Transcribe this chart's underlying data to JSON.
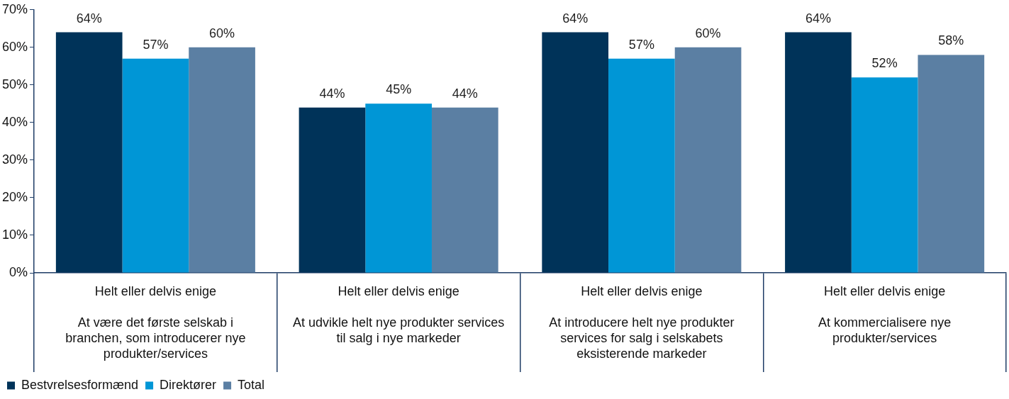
{
  "chart_data": {
    "type": "bar",
    "categories": [
      "Helt eller delvis enige\nAt være det første selskab i branchen, som introducerer nye produkter/services",
      "Helt eller delvis enige\nAt udvikle helt nye produkter services til salg i nye markeder",
      "Helt eller delvis enige\nAt introducere helt nye produkter services for salg i selskabets eksisterende markeder",
      "Helt eller delvis enige\nAt kommercialisere nye produkter/services"
    ],
    "series": [
      {
        "name": "Bestvrelsesformænd",
        "color": "#003359",
        "values": [
          64,
          44,
          64,
          64
        ],
        "value_labels": [
          "64%",
          "44%",
          "64%",
          "64%"
        ]
      },
      {
        "name": "Direktører",
        "color": "#0096d6",
        "values": [
          57,
          45,
          57,
          52
        ],
        "value_labels": [
          "57%",
          "45%",
          "57%",
          "52%"
        ]
      },
      {
        "name": "Total",
        "color": "#5b7fa3",
        "values": [
          60,
          44,
          60,
          58
        ],
        "value_labels": [
          "60%",
          "44%",
          "60%",
          "58%"
        ]
      }
    ],
    "ylim": [
      0,
      70
    ],
    "yticks": [
      {
        "value": 0,
        "label": "0%"
      },
      {
        "value": 10,
        "label": "10%"
      },
      {
        "value": 20,
        "label": "20%"
      },
      {
        "value": 30,
        "label": "30%"
      },
      {
        "value": 40,
        "label": "40%"
      },
      {
        "value": 50,
        "label": "50%"
      },
      {
        "value": 60,
        "label": "60%"
      },
      {
        "value": 70,
        "label": "70%"
      }
    ],
    "grid": false,
    "legend": "bottom left"
  }
}
